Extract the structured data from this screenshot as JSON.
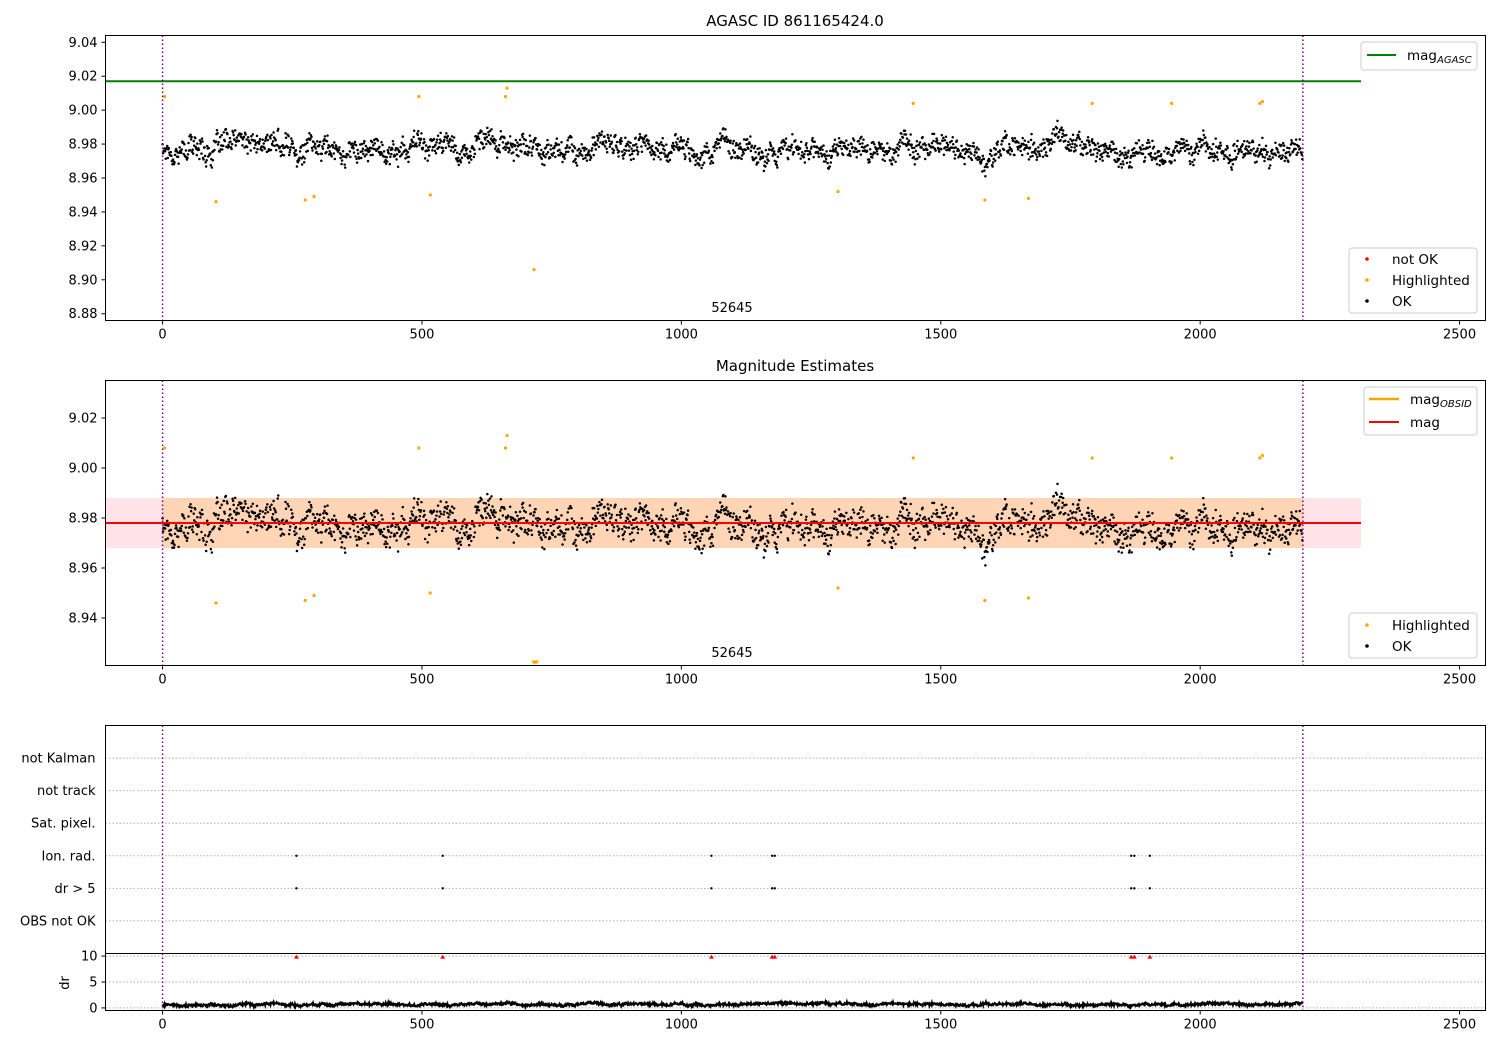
{
  "chart_data": [
    {
      "id": "top",
      "type": "scatter",
      "title": "AGASC ID 861165424.0",
      "xlim": [
        -110,
        2550
      ],
      "ylim": [
        8.876,
        9.044
      ],
      "x_ticks": [
        0,
        500,
        1000,
        1500,
        2000,
        2500
      ],
      "x_tick_labels": [
        "0",
        "500",
        "1000",
        "1500",
        "2000",
        "2500"
      ],
      "y_ticks": [
        8.88,
        8.9,
        8.92,
        8.94,
        8.96,
        8.98,
        9.0,
        9.02,
        9.04
      ],
      "y_tick_labels": [
        "8.88",
        "8.90",
        "8.92",
        "8.94",
        "8.96",
        "8.98",
        "9.00",
        "9.02",
        "9.04"
      ],
      "annotation": {
        "text": "52645",
        "x": 1100,
        "y": 8.878
      },
      "vlines": [
        0,
        2198
      ],
      "vline_color": "#800080",
      "mag_agasc_line": {
        "y": 9.017,
        "x_range": [
          -110,
          2310
        ],
        "color": "#008000"
      },
      "ok_series": {
        "n": 2198,
        "center": 8.978,
        "spread": 0.009,
        "color": "#000000"
      },
      "not_ok_points": [],
      "highlighted_points": [
        {
          "x": 4,
          "y": 9.008
        },
        {
          "x": 103,
          "y": 8.946
        },
        {
          "x": 275,
          "y": 8.947
        },
        {
          "x": 292,
          "y": 8.949
        },
        {
          "x": 494,
          "y": 9.008
        },
        {
          "x": 516,
          "y": 8.95
        },
        {
          "x": 661,
          "y": 9.008
        },
        {
          "x": 664,
          "y": 9.013
        },
        {
          "x": 716,
          "y": 8.906
        },
        {
          "x": 1302,
          "y": 8.952
        },
        {
          "x": 1447,
          "y": 9.004
        },
        {
          "x": 1585,
          "y": 8.947
        },
        {
          "x": 1669,
          "y": 8.948
        },
        {
          "x": 1792,
          "y": 9.004
        },
        {
          "x": 1945,
          "y": 9.004
        },
        {
          "x": 2115,
          "y": 9.004
        },
        {
          "x": 2120,
          "y": 9.005
        }
      ],
      "legend_top": [
        {
          "label": "mag",
          "sub": "AGASC",
          "color": "#008000"
        }
      ],
      "legend_bottom": [
        {
          "label": "not OK",
          "color": "#ff0000"
        },
        {
          "label": "Highlighted",
          "color": "#ffa500"
        },
        {
          "label": "OK",
          "color": "#000000"
        }
      ]
    },
    {
      "id": "middle",
      "type": "scatter",
      "title": "Magnitude Estimates",
      "xlim": [
        -110,
        2550
      ],
      "ylim": [
        8.921,
        9.035
      ],
      "x_ticks": [
        0,
        500,
        1000,
        1500,
        2000,
        2500
      ],
      "x_tick_labels": [
        "0",
        "500",
        "1000",
        "1500",
        "2000",
        "2500"
      ],
      "y_ticks": [
        8.94,
        8.96,
        8.98,
        9.0,
        9.02
      ],
      "y_tick_labels": [
        "8.94",
        "8.96",
        "8.98",
        "9.00",
        "9.02"
      ],
      "annotation": {
        "text": "52645",
        "x": 1100,
        "y": 8.923
      },
      "vlines": [
        0,
        2198
      ],
      "vline_color": "#800080",
      "mag_line": {
        "y": 8.978,
        "x_range": [
          -110,
          2310
        ],
        "color": "#ff0000"
      },
      "mag_band": {
        "y_low": 8.968,
        "y_high": 8.988,
        "x_range": [
          -110,
          2310
        ],
        "color": "#ffc0cb"
      },
      "mag_obsid_band": {
        "y_low": 8.968,
        "y_high": 8.988,
        "x_range": [
          0,
          2198
        ],
        "color": "#ffa500"
      },
      "ok_series": {
        "n": 2198,
        "center": 8.978,
        "spread": 0.009,
        "color": "#000000"
      },
      "clipped_markers": [
        {
          "x": 716
        },
        {
          "x": 720
        }
      ],
      "highlighted_points": [
        {
          "x": 4,
          "y": 9.008
        },
        {
          "x": 103,
          "y": 8.946
        },
        {
          "x": 275,
          "y": 8.947
        },
        {
          "x": 292,
          "y": 8.949
        },
        {
          "x": 494,
          "y": 9.008
        },
        {
          "x": 516,
          "y": 8.95
        },
        {
          "x": 661,
          "y": 9.008
        },
        {
          "x": 664,
          "y": 9.013
        },
        {
          "x": 1302,
          "y": 8.952
        },
        {
          "x": 1447,
          "y": 9.004
        },
        {
          "x": 1585,
          "y": 8.947
        },
        {
          "x": 1669,
          "y": 8.948
        },
        {
          "x": 1792,
          "y": 9.004
        },
        {
          "x": 1945,
          "y": 9.004
        },
        {
          "x": 2115,
          "y": 9.004
        },
        {
          "x": 2120,
          "y": 9.005
        }
      ],
      "legend_top": [
        {
          "label": "mag",
          "sub": "OBSID",
          "color": "#ffa500"
        },
        {
          "label": "mag",
          "sub": "",
          "color": "#ff0000"
        }
      ],
      "legend_bottom": [
        {
          "label": "Highlighted",
          "color": "#ffa500"
        },
        {
          "label": "OK",
          "color": "#000000"
        }
      ]
    },
    {
      "id": "flags",
      "type": "scatter",
      "xlim": [
        -110,
        2550
      ],
      "categories": [
        "OBS not OK",
        "dr > 5",
        "Ion. rad.",
        "Sat. pixel.",
        "not track",
        "not Kalman"
      ],
      "flag_points": {
        "dr > 5": [
          258,
          540,
          1058,
          1175,
          1180,
          1867,
          1873,
          1903
        ],
        "Ion. rad.": [
          258,
          540,
          1058,
          1175,
          1180,
          1867,
          1873,
          1903
        ]
      },
      "vlines": [
        0,
        2198
      ],
      "vline_color": "#800080"
    },
    {
      "id": "dr",
      "type": "line",
      "xlim": [
        -110,
        2550
      ],
      "ylim": [
        -0.5,
        10.5
      ],
      "ylabel": "dr",
      "x_ticks": [
        0,
        500,
        1000,
        1500,
        2000,
        2500
      ],
      "x_tick_labels": [
        "0",
        "500",
        "1000",
        "1500",
        "2000",
        "2500"
      ],
      "y_ticks": [
        0,
        5,
        10
      ],
      "y_tick_labels": [
        "0",
        "5",
        "10"
      ],
      "dr_series": {
        "n": 2198,
        "center": 0.7,
        "spread": 0.35,
        "color": "#000000"
      },
      "clipped_markers": [
        {
          "x": 258
        },
        {
          "x": 540
        },
        {
          "x": 1058
        },
        {
          "x": 1175
        },
        {
          "x": 1180
        },
        {
          "x": 1867
        },
        {
          "x": 1873
        },
        {
          "x": 1903
        }
      ],
      "clipped_color": "#ff0000",
      "vlines": [
        0,
        2198
      ],
      "vline_color": "#800080"
    }
  ]
}
